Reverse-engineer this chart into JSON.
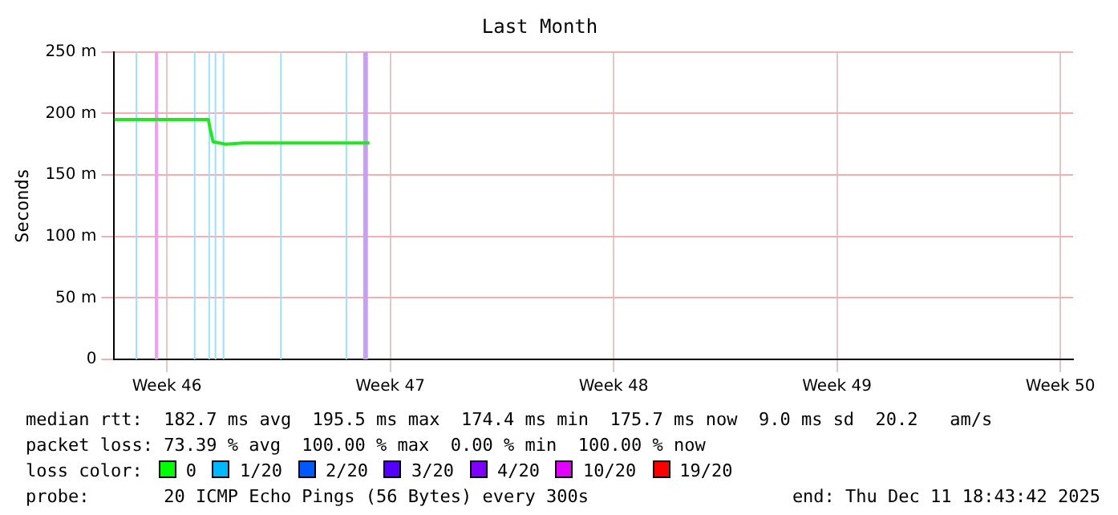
{
  "chart_data": {
    "type": "line",
    "title": "Last Month",
    "ylabel": "Seconds",
    "xlim": [
      "2025-11-08T08:24",
      "2025-12-08T09:36"
    ],
    "xticks": [
      {
        "value": "2025-11-10",
        "label": "Week 46"
      },
      {
        "value": "2025-11-17",
        "label": "Week 47"
      },
      {
        "value": "2025-11-24",
        "label": "Week 48"
      },
      {
        "value": "2025-12-01",
        "label": "Week 49"
      },
      {
        "value": "2025-12-08",
        "label": "Week 50"
      }
    ],
    "ylim": [
      0,
      250
    ],
    "yticks": [
      0,
      {
        "value": 50,
        "label": "50 m"
      },
      {
        "value": 100,
        "label": "100 m"
      },
      {
        "value": 150,
        "label": "150 m"
      },
      {
        "value": 200,
        "label": "200 m"
      },
      {
        "value": 250,
        "label": "250 m"
      }
    ],
    "grid": true,
    "legend": false,
    "marker": "none",
    "line_style": "solid",
    "series": [
      {
        "color": "#22e622",
        "x": [
          "2025-11-08T08:24",
          "2025-11-11T07:15",
          "2025-11-11T08:25",
          "2025-11-11T10:47",
          "2025-11-11T20:21",
          "2025-11-12T09:37",
          "2025-11-16T08:23"
        ],
        "values": [
          195,
          195,
          188,
          177,
          175,
          176,
          176
        ]
      }
    ],
    "bands": [
      {
        "axis": "x",
        "from": "2025-11-09T00:30",
        "to": "2025-11-09T01:30",
        "color": "#9fe0f8"
      },
      {
        "axis": "x",
        "from": "2025-11-09T14:56",
        "to": "2025-11-09T17:27",
        "color": "#f0a0f0"
      },
      {
        "axis": "x",
        "from": "2025-11-10T20:20",
        "to": "2025-11-10T21:30",
        "color": "#9fe0f8"
      },
      {
        "axis": "x",
        "from": "2025-11-11T07:15",
        "to": "2025-11-11T08:25",
        "color": "#9fe0f8"
      },
      {
        "axis": "x",
        "from": "2025-11-11T11:57",
        "to": "2025-11-11T13:08",
        "color": "#9fe0f8"
      },
      {
        "axis": "x",
        "from": "2025-11-11T18:00",
        "to": "2025-11-11T19:10",
        "color": "#9fe0f8"
      },
      {
        "axis": "x",
        "from": "2025-11-13T13:10",
        "to": "2025-11-13T14:21",
        "color": "#9fe0f8"
      },
      {
        "axis": "x",
        "from": "2025-11-15T14:24",
        "to": "2025-11-15T15:35",
        "color": "#9fe0f8"
      },
      {
        "axis": "x",
        "from": "2025-11-16T03:40",
        "to": "2025-11-16T07:12",
        "color": "#c8a0f0"
      }
    ],
    "annotations": [
      "median rtt:  182.7 ms avg  195.5 ms max  174.4 ms min  175.7 ms now  9.0 ms sd  20.2   am/s",
      "packet loss: 73.39 % avg  100.00 % max  0.00 % min  100.00 % now",
      "loss color:",
      "0",
      "1/20",
      "2/20",
      "3/20",
      "4/20",
      "10/20",
      "19/20",
      "probe:       20 ICMP Echo Pings (56 Bytes) every 300s",
      "end: Thu Dec 11 18:43:42 2025"
    ]
  }
}
